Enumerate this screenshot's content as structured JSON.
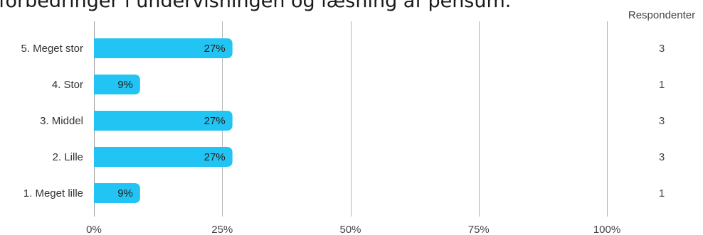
{
  "chart_data": {
    "type": "bar",
    "orientation": "horizontal",
    "title": "forbedringer i undervisningen og læsning af pensum.",
    "categories": [
      "5. Meget stor",
      "4. Stor",
      "3. Middel",
      "2. Lille",
      "1. Meget lille"
    ],
    "values": [
      27,
      9,
      27,
      27,
      9
    ],
    "value_labels": [
      "27%",
      "9%",
      "27%",
      "27%",
      "9%"
    ],
    "counts": [
      3,
      1,
      3,
      3,
      1
    ],
    "count_column_header": "Respondenter",
    "x_ticks": [
      "0%",
      "25%",
      "50%",
      "75%",
      "100%"
    ],
    "xlim": [
      0,
      100
    ],
    "grid": true,
    "bar_color": "#21c4f3",
    "grid_color": "#b3b3b3"
  }
}
